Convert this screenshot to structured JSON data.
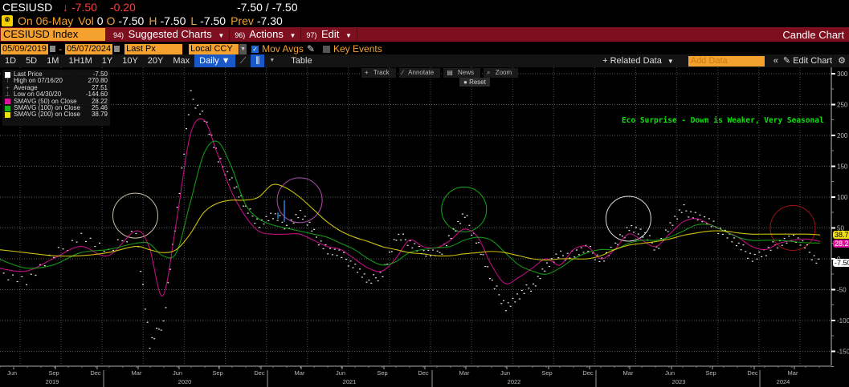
{
  "quote": {
    "ticker": "CESIUSD",
    "arrow": "↓",
    "last": "-7.50",
    "change": "-0.20",
    "bid_ask": "-7.50 / -7.50",
    "date_label": "On 06-May",
    "vol_label": "Vol",
    "vol": "0",
    "open_label": "O",
    "open": "-7.50",
    "high_label": "H",
    "high": "-7.50",
    "low_label": "L",
    "low": "-7.50",
    "prev_label": "Prev",
    "prev": "-7.30"
  },
  "menu": {
    "security": "CESIUSD Index",
    "items": [
      {
        "num": "94)",
        "label": "Suggested Charts"
      },
      {
        "num": "96)",
        "label": "Actions"
      },
      {
        "num": "97)",
        "label": "Edit"
      }
    ],
    "title": "Candle Chart"
  },
  "controls": {
    "start_date": "05/09/2019",
    "end_date": "05/07/2024",
    "field": "Last Px",
    "currency": "Local CCY",
    "mov_avgs_label": "Mov Avgs",
    "mov_avgs_checked": true,
    "key_events_label": "Key Events",
    "key_events_checked": false
  },
  "timebar": {
    "ranges": [
      "1D",
      "5D",
      "1M",
      "1H1M",
      "1Y",
      "10Y",
      "20Y",
      "Max"
    ],
    "period": "Daily ▼",
    "table_label": "Table",
    "related_data": "+ Related Data",
    "add_data_placeholder": "Add Data",
    "collapse": "«",
    "edit_chart": "Edit Chart",
    "gear": "⚙"
  },
  "chart_tools": {
    "track": "Track",
    "annotate": "Annotate",
    "news": "News",
    "zoom": "Zoom",
    "reset": "Reset"
  },
  "legend": [
    {
      "label": "Last Price",
      "value": "-7.50",
      "color": "#ffffff",
      "kind": "swatch"
    },
    {
      "label": "High on 07/16/20",
      "value": "270.80",
      "kind": "glyph",
      "glyph": "⊤"
    },
    {
      "label": "Average",
      "value": "27.51",
      "kind": "glyph",
      "glyph": "+"
    },
    {
      "label": "Low on 04/30/20",
      "value": "-144.60",
      "kind": "glyph",
      "glyph": "⊥"
    },
    {
      "label": "SMAVG (50)  on Close",
      "value": "28.22",
      "color": "#e0119a",
      "kind": "swatch"
    },
    {
      "label": "SMAVG (100)  on Close",
      "value": "25.46",
      "color": "#17b21a",
      "kind": "swatch"
    },
    {
      "label": "SMAVG (200)  on Close",
      "value": "38.79",
      "color": "#f0e010",
      "kind": "swatch"
    }
  ],
  "annotation": "Eco Surprise - Down is Weaker, Very Seasonal",
  "price_labels": [
    {
      "value": "38.79",
      "color": "#f0e010"
    },
    {
      "value": "28.22",
      "color": "#e0119a"
    },
    {
      "value": "-7.50",
      "color": "#ffffff"
    }
  ],
  "chart_data": {
    "type": "line",
    "title": "CESIUSD Index",
    "subtitle": "Eco Surprise - Down is Weaker, Very Seasonal",
    "xlabel": "",
    "ylabel": "",
    "ylim": [
      -165,
      305
    ],
    "yticks": [
      300,
      250,
      200,
      150,
      100,
      50,
      0,
      -50,
      -100,
      -150
    ],
    "x_tick_labels": [
      "Jun",
      "Sep",
      "Dec",
      "Mar",
      "Jun",
      "Sep",
      "Dec",
      "Mar",
      "Jun",
      "Sep",
      "Dec",
      "Mar",
      "Jun",
      "Sep",
      "Dec",
      "Mar",
      "Jun",
      "Sep",
      "Dec",
      "Mar"
    ],
    "x_year_labels": [
      "2019",
      "2020",
      "2021",
      "2022",
      "2023",
      "2024"
    ],
    "grid": true,
    "legend_position": "top-left",
    "x": [
      "2019-05",
      "2019-07",
      "2019-09",
      "2019-11",
      "2020-01",
      "2020-03",
      "2020-04",
      "2020-05",
      "2020-06",
      "2020-07",
      "2020-08",
      "2020-09",
      "2020-10",
      "2020-11",
      "2020-12",
      "2021-01",
      "2021-02",
      "2021-03",
      "2021-04",
      "2021-05",
      "2021-06",
      "2021-07",
      "2021-08",
      "2021-09",
      "2021-10",
      "2021-11",
      "2021-12",
      "2022-01",
      "2022-02",
      "2022-03",
      "2022-04",
      "2022-05",
      "2022-06",
      "2022-07",
      "2022-08",
      "2022-09",
      "2022-10",
      "2022-11",
      "2022-12",
      "2023-01",
      "2023-02",
      "2023-03",
      "2023-04",
      "2023-05",
      "2023-06",
      "2023-07",
      "2023-08",
      "2023-09",
      "2023-10",
      "2023-11",
      "2023-12",
      "2024-01",
      "2024-02",
      "2024-03",
      "2024-04",
      "2024-05"
    ],
    "series": [
      {
        "name": "Last Price",
        "color": "#ffffff",
        "values": [
          -20,
          -35,
          5,
          40,
          10,
          50,
          -140,
          -100,
          80,
          265,
          230,
          160,
          130,
          80,
          60,
          70,
          55,
          75,
          40,
          15,
          5,
          -10,
          -40,
          -20,
          35,
          30,
          10,
          5,
          40,
          70,
          25,
          -40,
          -75,
          -60,
          -40,
          -10,
          5,
          10,
          15,
          0,
          20,
          55,
          40,
          20,
          55,
          80,
          70,
          55,
          45,
          20,
          5,
          10,
          30,
          35,
          15,
          -7.5
        ]
      },
      {
        "name": "SMAVG (50)",
        "color": "#e0119a",
        "values": [
          -15,
          -20,
          0,
          20,
          5,
          45,
          20,
          -60,
          60,
          200,
          225,
          170,
          110,
          70,
          45,
          40,
          40,
          40,
          30,
          20,
          15,
          0,
          -15,
          -20,
          0,
          30,
          20,
          18,
          30,
          48,
          35,
          -10,
          -40,
          -30,
          -15,
          0,
          -10,
          15,
          20,
          0,
          15,
          40,
          30,
          20,
          40,
          60,
          65,
          55,
          45,
          35,
          20,
          15,
          25,
          30,
          32,
          28.2
        ]
      },
      {
        "name": "SMAVG (100)",
        "color": "#17b21a",
        "values": [
          0,
          -15,
          -10,
          10,
          15,
          25,
          25,
          5,
          10,
          90,
          170,
          190,
          150,
          90,
          65,
          55,
          50,
          45,
          40,
          35,
          25,
          15,
          0,
          -10,
          -5,
          10,
          15,
          18,
          20,
          30,
          35,
          30,
          10,
          -10,
          -20,
          -25,
          -15,
          0,
          10,
          15,
          15,
          25,
          30,
          30,
          35,
          45,
          55,
          55,
          45,
          35,
          30,
          30,
          30,
          28,
          26,
          25.5
        ]
      },
      {
        "name": "SMAVG (200)",
        "color": "#f0e010",
        "values": [
          15,
          10,
          5,
          5,
          10,
          20,
          15,
          10,
          15,
          40,
          75,
          90,
          95,
          95,
          100,
          120,
          115,
          100,
          80,
          60,
          45,
          35,
          28,
          20,
          15,
          10,
          8,
          5,
          5,
          8,
          10,
          12,
          10,
          5,
          0,
          -2,
          0,
          0,
          0,
          5,
          15,
          22,
          25,
          28,
          32,
          38,
          42,
          45,
          45,
          42,
          40,
          40,
          40,
          40,
          40,
          38.8
        ]
      }
    ],
    "markers": {
      "high": {
        "date": "07/16/20",
        "value": 270.8
      },
      "low": {
        "date": "04/30/20",
        "value": -144.6
      },
      "average": 27.51
    },
    "highlight_circles": [
      {
        "x": "2020-03",
        "y": 70,
        "color": "#c8c0a8"
      },
      {
        "x": "2021-03",
        "y": 95,
        "color": "#b050b0"
      },
      {
        "x": "2022-03",
        "y": 80,
        "color": "#13a813"
      },
      {
        "x": "2023-03",
        "y": 65,
        "color": "#dddddd"
      },
      {
        "x": "2024-03",
        "y": 50,
        "color": "#a01414"
      }
    ]
  }
}
